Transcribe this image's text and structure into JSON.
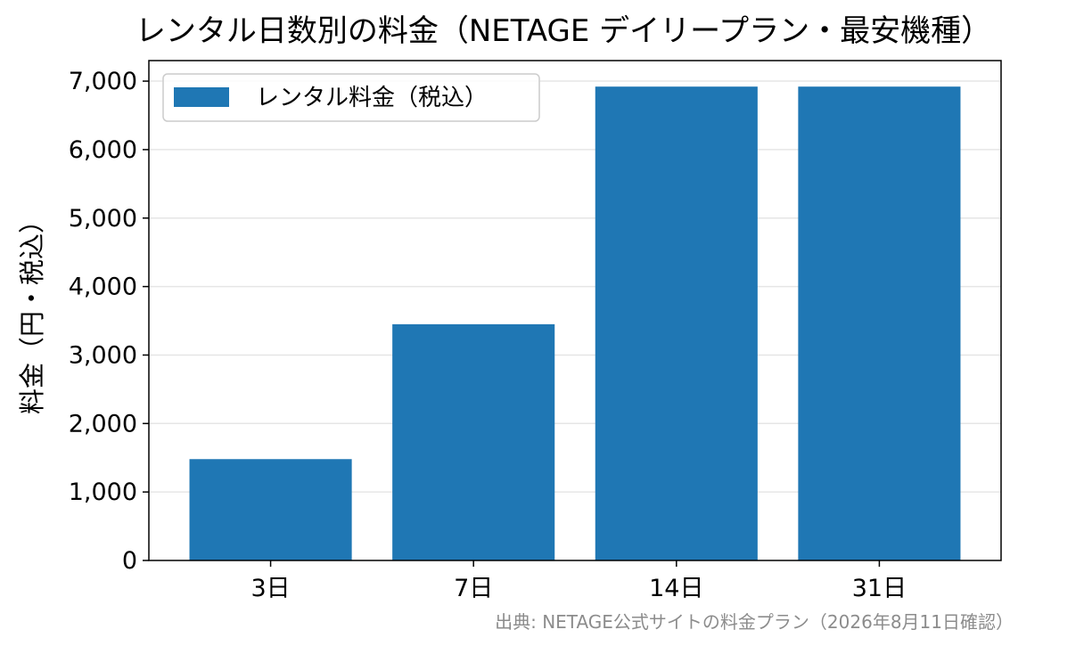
{
  "chart_data": {
    "type": "bar",
    "title": "レンタル日数別の料金（NETAGE デイリープラン・最安機種）",
    "xlabel": "",
    "ylabel": "料金（円・税込）",
    "categories": [
      "3日",
      "7日",
      "14日",
      "31日"
    ],
    "series": [
      {
        "name": "レンタル料金（税込）",
        "values": [
          1480,
          3450,
          6920,
          6920
        ],
        "color": "#1f77b4"
      }
    ],
    "ylim": [
      0,
      7300
    ],
    "yticks": [
      0,
      1000,
      2000,
      3000,
      4000,
      5000,
      6000,
      7000
    ],
    "ytick_labels": [
      "0",
      "1,000",
      "2,000",
      "3,000",
      "4,000",
      "5,000",
      "6,000",
      "7,000"
    ],
    "grid": "horizontal",
    "legend_position": "top-left",
    "source_note": "出典: NETAGE公式サイトの料金プラン（2026年8月11日確認）"
  }
}
